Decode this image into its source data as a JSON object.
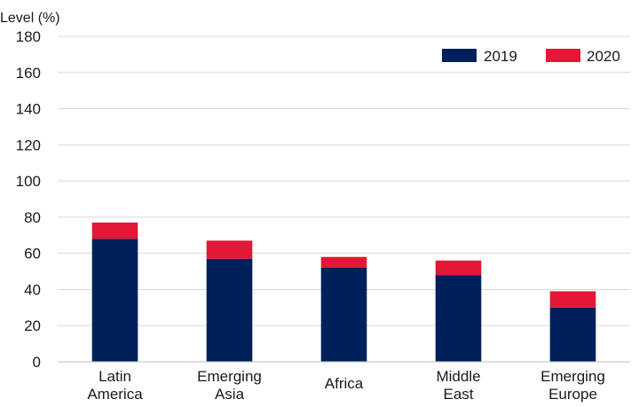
{
  "chart_data": {
    "type": "bar",
    "stacked": true,
    "ylabel": "Level (%)",
    "ylim": [
      0,
      180
    ],
    "yticks": [
      0,
      20,
      40,
      60,
      80,
      100,
      120,
      140,
      160,
      180
    ],
    "grid": true,
    "legend_position": "top-right",
    "categories": [
      [
        "Latin",
        "America"
      ],
      [
        "Emerging",
        "Asia"
      ],
      [
        "Africa"
      ],
      [
        "Middle",
        "East"
      ],
      [
        "Emerging",
        "Europe"
      ]
    ],
    "series": [
      {
        "name": "2019",
        "color": "#00205b",
        "values": [
          68,
          57,
          52,
          48,
          30
        ]
      },
      {
        "name": "2020",
        "color": "#e31837",
        "values": [
          9,
          10,
          6,
          8,
          9
        ]
      }
    ]
  }
}
